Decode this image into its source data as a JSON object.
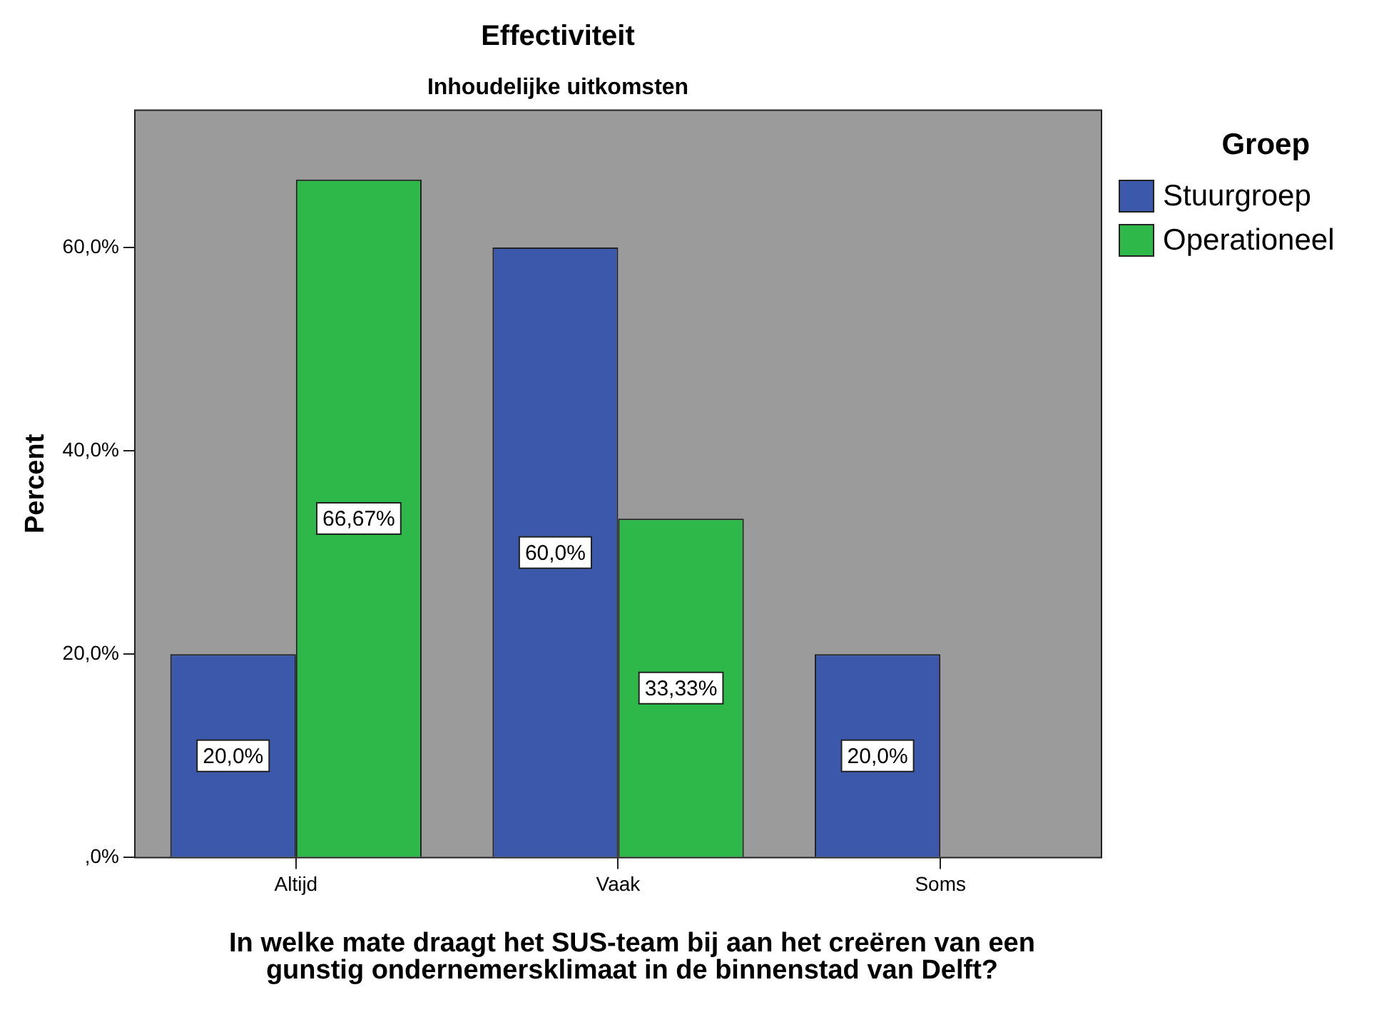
{
  "chart_data": {
    "type": "bar",
    "title": "Effectiviteit",
    "subtitle": "Inhoudelijke uitkomsten",
    "xlabel": "In welke mate draagt het SUS-team bij aan het creëren van een gunstig ondernemersklimaat in de binnenstad van Delft?",
    "ylabel": "Percent",
    "legend_title": "Groep",
    "legend": "top right",
    "grid": false,
    "categories": [
      "Altijd",
      "Vaak",
      "Soms"
    ],
    "series": [
      {
        "name": "Stuurgroep",
        "color": "#3c58aa",
        "values": [
          20,
          60,
          20
        ],
        "value_labels": [
          "20,0%",
          "60,0%",
          "20,0%"
        ]
      },
      {
        "name": "Operationeel",
        "color": "#2fb84a",
        "values": [
          66.67,
          33.33,
          0
        ],
        "value_labels": [
          "66,67%",
          "33,33%",
          null
        ]
      }
    ],
    "ylim": [
      0,
      73.5
    ],
    "yticks": [
      {
        "value": 0,
        "label": ",0%"
      },
      {
        "value": 20,
        "label": "20,0%"
      },
      {
        "value": 40,
        "label": "40,0%"
      },
      {
        "value": 60,
        "label": "60,0%"
      }
    ]
  }
}
